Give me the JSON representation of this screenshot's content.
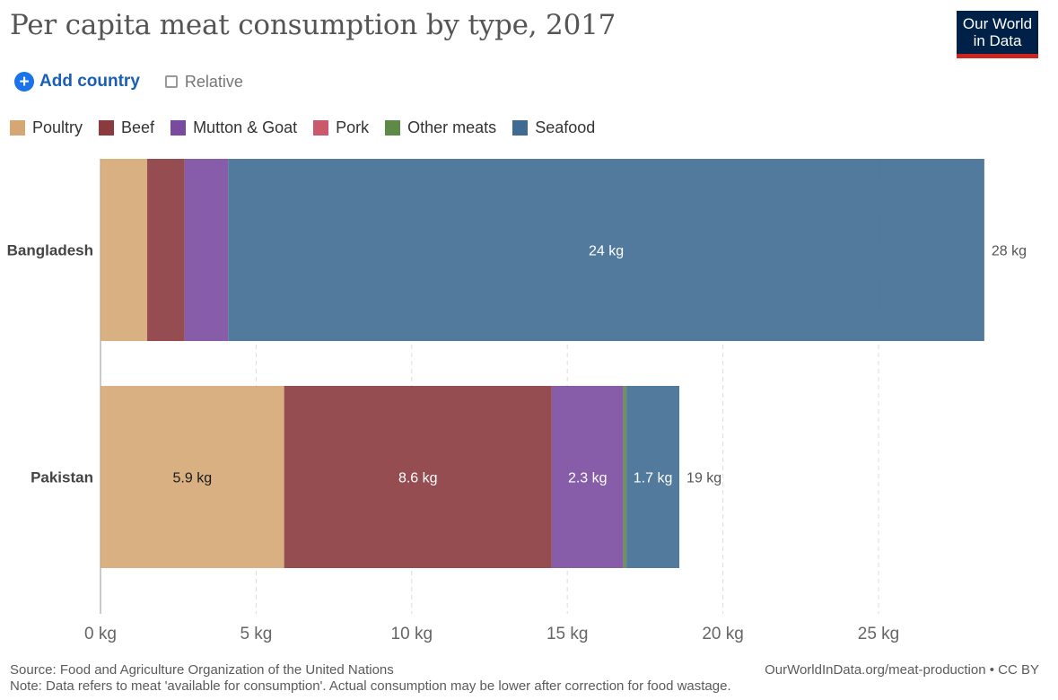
{
  "header": {
    "title": "Per capita meat consumption by type, 2017",
    "logo_line1": "Our World",
    "logo_line2": "in Data"
  },
  "controls": {
    "add_country_label": "Add country",
    "relative_label": "Relative"
  },
  "legend": {
    "items": [
      {
        "label": "Poultry",
        "color": "#d4a774"
      },
      {
        "label": "Beef",
        "color": "#8b3a3f"
      },
      {
        "label": "Mutton & Goat",
        "color": "#7a4a9e"
      },
      {
        "label": "Pork",
        "color": "#c9596b"
      },
      {
        "label": "Other meats",
        "color": "#5d8a47"
      },
      {
        "label": "Seafood",
        "color": "#3f6b92"
      }
    ]
  },
  "chart_data": {
    "type": "bar",
    "orientation": "horizontal",
    "stacked": true,
    "categories": [
      "Bangladesh",
      "Pakistan"
    ],
    "series": [
      {
        "name": "Poultry",
        "color": "#d4a774",
        "values": [
          1.5,
          5.9
        ]
      },
      {
        "name": "Beef",
        "color": "#8b3a3f",
        "values": [
          1.2,
          8.6
        ]
      },
      {
        "name": "Mutton & Goat",
        "color": "#7a4a9e",
        "values": [
          1.4,
          2.3
        ]
      },
      {
        "name": "Pork",
        "color": "#c9596b",
        "values": [
          0,
          0
        ]
      },
      {
        "name": "Other meats",
        "color": "#5d8a47",
        "values": [
          0,
          0.1
        ]
      },
      {
        "name": "Seafood",
        "color": "#3f6b92",
        "values": [
          24.3,
          1.7
        ]
      }
    ],
    "segment_labels": [
      [
        "",
        "",
        "",
        "",
        "",
        "24 kg"
      ],
      [
        "5.9 kg",
        "8.6 kg",
        "2.3 kg",
        "",
        "",
        "1.7 kg"
      ]
    ],
    "totals": [
      28,
      19
    ],
    "total_labels": [
      "28 kg",
      "19 kg"
    ],
    "xlim": [
      0,
      28.5
    ],
    "xticks": [
      0,
      5,
      10,
      15,
      20,
      25
    ],
    "xtick_labels": [
      "0 kg",
      "5 kg",
      "10 kg",
      "15 kg",
      "20 kg",
      "25 kg"
    ],
    "grid": true,
    "legend_position": "top-left"
  },
  "footer": {
    "source": "Source: Food and Agriculture Organization of the United Nations",
    "note": "Note: Data refers to meat 'available for consumption'. Actual consumption may be lower after correction for food wastage.",
    "url": "OurWorldInData.org/meat-production • CC BY"
  }
}
